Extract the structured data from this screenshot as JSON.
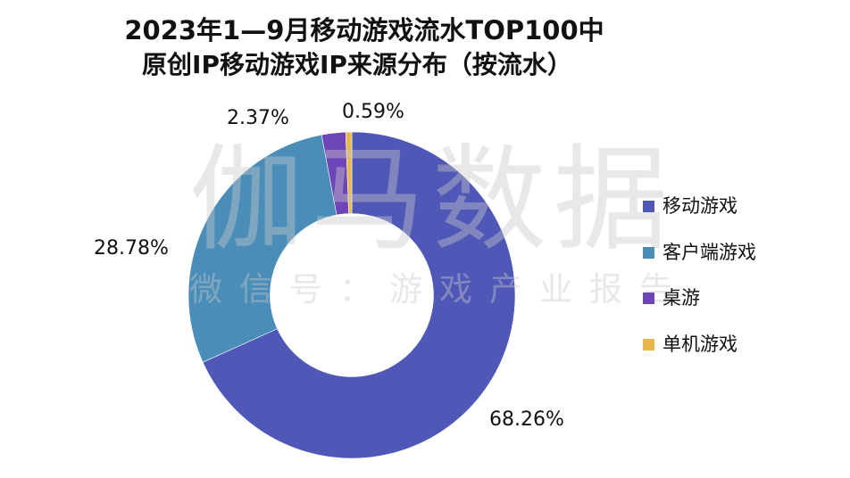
{
  "title": {
    "line1": "2023年1—9月移动游戏流水TOP100中",
    "line2": "原创IP移动游戏IP来源分布（按流水）"
  },
  "watermark": {
    "brand": "伽马数据",
    "subtitle": "微信号：游戏产业报告"
  },
  "colors": {
    "mobile_game": "#4f57b7",
    "client_game": "#4a8db9",
    "board_game": "#6e45b8",
    "standalone_game": "#e8b94a",
    "background": "#ffffff"
  },
  "legend": {
    "items": [
      {
        "label": "移动游戏",
        "color": "#4f57b7"
      },
      {
        "label": "客户端游戏",
        "color": "#4a8db9"
      },
      {
        "label": "桌游",
        "color": "#6e45b8"
      },
      {
        "label": "单机游戏",
        "color": "#e8b94a"
      }
    ]
  },
  "labels": {
    "mobile_game": "68.26%",
    "client_game": "28.78%",
    "board_game": "2.37%",
    "standalone_game": "0.59%"
  },
  "chart_data": {
    "type": "pie",
    "variant": "donut",
    "title": "2023年1—9月移动游戏流水TOP100中 原创IP移动游戏IP来源分布（按流水）",
    "categories": [
      "移动游戏",
      "客户端游戏",
      "桌游",
      "单机游戏"
    ],
    "values": [
      68.26,
      28.78,
      2.37,
      0.59
    ],
    "unit": "%",
    "colors": [
      "#4f57b7",
      "#4a8db9",
      "#6e45b8",
      "#e8b94a"
    ],
    "start_angle": "12 o'clock",
    "direction": "clockwise",
    "inner_radius_ratio": 0.5,
    "legend_position": "right",
    "data_labels": [
      "68.26%",
      "28.78%",
      "2.37%",
      "0.59%"
    ]
  }
}
